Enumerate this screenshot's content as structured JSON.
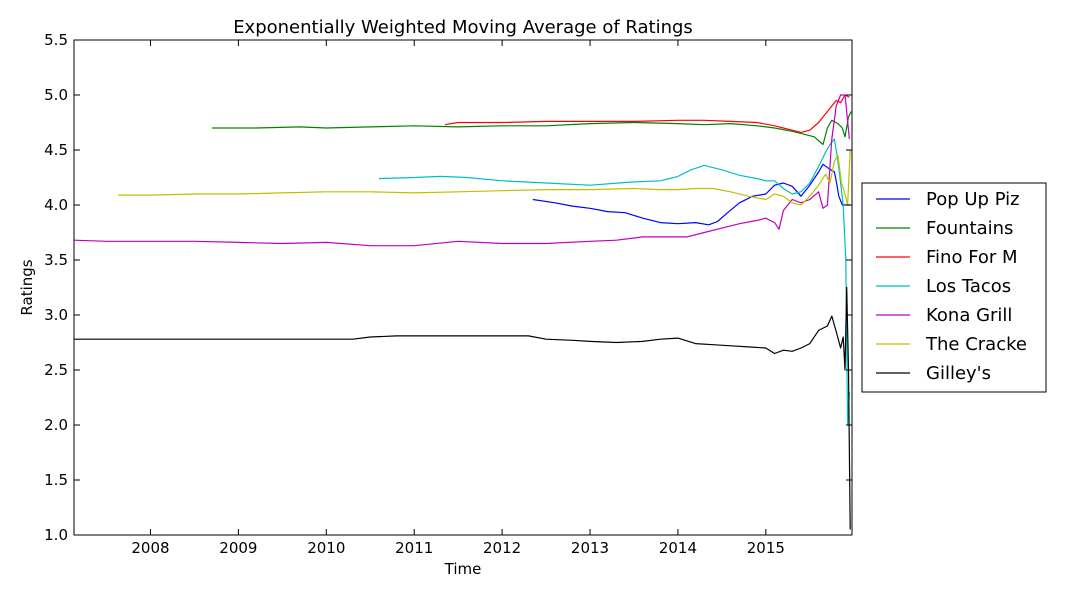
{
  "chart_data": {
    "type": "line",
    "title": "Exponentially Weighted Moving Average of Ratings",
    "xlabel": "Time",
    "ylabel": "Ratings",
    "xlim": [
      2007.13,
      2015.98
    ],
    "ylim": [
      1.0,
      5.5
    ],
    "xticks": [
      2008,
      2009,
      2010,
      2011,
      2012,
      2013,
      2014,
      2015
    ],
    "xtick_labels": [
      "2008",
      "2009",
      "2010",
      "2011",
      "2012",
      "2013",
      "2014",
      "2015"
    ],
    "yticks": [
      1.0,
      1.5,
      2.0,
      2.5,
      3.0,
      3.5,
      4.0,
      4.5,
      5.0,
      5.5
    ],
    "ytick_labels": [
      "1.0",
      "1.5",
      "2.0",
      "2.5",
      "3.0",
      "3.5",
      "4.0",
      "4.5",
      "5.0",
      "5.5"
    ],
    "grid": false,
    "legend_position": "outside-right",
    "series": [
      {
        "name": "Pop Up Piz",
        "color": "#0000ff",
        "points": [
          [
            2012.35,
            4.05
          ],
          [
            2012.6,
            4.02
          ],
          [
            2012.8,
            3.99
          ],
          [
            2013.0,
            3.97
          ],
          [
            2013.2,
            3.94
          ],
          [
            2013.4,
            3.93
          ],
          [
            2013.6,
            3.88
          ],
          [
            2013.8,
            3.84
          ],
          [
            2014.0,
            3.83
          ],
          [
            2014.2,
            3.84
          ],
          [
            2014.35,
            3.82
          ],
          [
            2014.45,
            3.85
          ],
          [
            2014.55,
            3.92
          ],
          [
            2014.7,
            4.02
          ],
          [
            2014.85,
            4.08
          ],
          [
            2015.0,
            4.1
          ],
          [
            2015.1,
            4.18
          ],
          [
            2015.2,
            4.2
          ],
          [
            2015.3,
            4.17
          ],
          [
            2015.4,
            4.08
          ],
          [
            2015.5,
            4.18
          ],
          [
            2015.6,
            4.3
          ],
          [
            2015.65,
            4.37
          ],
          [
            2015.72,
            4.33
          ],
          [
            2015.78,
            4.3
          ],
          [
            2015.8,
            4.22
          ],
          [
            2015.83,
            4.08
          ],
          [
            2015.87,
            4.0
          ],
          [
            2015.91,
            4.0
          ],
          [
            2015.96,
            4.0
          ]
        ]
      },
      {
        "name": "Fountains",
        "color": "#008000",
        "points": [
          [
            2008.7,
            4.7
          ],
          [
            2009.2,
            4.7
          ],
          [
            2009.7,
            4.71
          ],
          [
            2010.0,
            4.7
          ],
          [
            2010.5,
            4.71
          ],
          [
            2011.0,
            4.72
          ],
          [
            2011.5,
            4.71
          ],
          [
            2012.0,
            4.72
          ],
          [
            2012.5,
            4.72
          ],
          [
            2013.0,
            4.74
          ],
          [
            2013.5,
            4.75
          ],
          [
            2014.0,
            4.74
          ],
          [
            2014.3,
            4.73
          ],
          [
            2014.6,
            4.74
          ],
          [
            2014.9,
            4.72
          ],
          [
            2015.1,
            4.7
          ],
          [
            2015.3,
            4.67
          ],
          [
            2015.45,
            4.64
          ],
          [
            2015.55,
            4.62
          ],
          [
            2015.65,
            4.55
          ],
          [
            2015.7,
            4.7
          ],
          [
            2015.75,
            4.77
          ],
          [
            2015.82,
            4.74
          ],
          [
            2015.87,
            4.7
          ],
          [
            2015.9,
            4.62
          ],
          [
            2015.94,
            4.8
          ],
          [
            2015.97,
            4.85
          ]
        ]
      },
      {
        "name": "Fino For M",
        "color": "#ff0000",
        "points": [
          [
            2011.35,
            4.73
          ],
          [
            2011.5,
            4.75
          ],
          [
            2012.0,
            4.75
          ],
          [
            2012.5,
            4.76
          ],
          [
            2013.0,
            4.76
          ],
          [
            2013.5,
            4.76
          ],
          [
            2014.0,
            4.77
          ],
          [
            2014.3,
            4.77
          ],
          [
            2014.6,
            4.76
          ],
          [
            2014.9,
            4.75
          ],
          [
            2015.1,
            4.72
          ],
          [
            2015.3,
            4.68
          ],
          [
            2015.4,
            4.66
          ],
          [
            2015.5,
            4.68
          ],
          [
            2015.6,
            4.75
          ],
          [
            2015.65,
            4.8
          ],
          [
            2015.7,
            4.85
          ],
          [
            2015.75,
            4.9
          ],
          [
            2015.8,
            4.95
          ],
          [
            2015.85,
            4.93
          ],
          [
            2015.9,
            5.0
          ],
          [
            2015.95,
            4.98
          ]
        ]
      },
      {
        "name": "Los Tacos",
        "color": "#00bfbf",
        "points": [
          [
            2010.6,
            4.24
          ],
          [
            2011.0,
            4.25
          ],
          [
            2011.3,
            4.26
          ],
          [
            2011.6,
            4.25
          ],
          [
            2012.0,
            4.22
          ],
          [
            2012.5,
            4.2
          ],
          [
            2013.0,
            4.18
          ],
          [
            2013.5,
            4.21
          ],
          [
            2013.8,
            4.22
          ],
          [
            2014.0,
            4.26
          ],
          [
            2014.15,
            4.32
          ],
          [
            2014.3,
            4.36
          ],
          [
            2014.5,
            4.32
          ],
          [
            2014.7,
            4.27
          ],
          [
            2014.9,
            4.24
          ],
          [
            2015.0,
            4.22
          ],
          [
            2015.1,
            4.22
          ],
          [
            2015.2,
            4.15
          ],
          [
            2015.3,
            4.1
          ],
          [
            2015.4,
            4.12
          ],
          [
            2015.5,
            4.2
          ],
          [
            2015.6,
            4.35
          ],
          [
            2015.68,
            4.48
          ],
          [
            2015.73,
            4.55
          ],
          [
            2015.78,
            4.6
          ],
          [
            2015.82,
            4.4
          ],
          [
            2015.85,
            4.2
          ],
          [
            2015.88,
            4.0
          ],
          [
            2015.91,
            3.5
          ],
          [
            2015.93,
            2.0
          ],
          [
            2015.95,
            2.3
          ]
        ]
      },
      {
        "name": "Kona Grill",
        "color": "#bf00bf",
        "points": [
          [
            2007.13,
            3.68
          ],
          [
            2007.5,
            3.67
          ],
          [
            2008.0,
            3.67
          ],
          [
            2008.5,
            3.67
          ],
          [
            2009.0,
            3.66
          ],
          [
            2009.5,
            3.65
          ],
          [
            2010.0,
            3.66
          ],
          [
            2010.5,
            3.63
          ],
          [
            2011.0,
            3.63
          ],
          [
            2011.5,
            3.67
          ],
          [
            2012.0,
            3.65
          ],
          [
            2012.5,
            3.65
          ],
          [
            2013.0,
            3.67
          ],
          [
            2013.3,
            3.68
          ],
          [
            2013.6,
            3.71
          ],
          [
            2013.9,
            3.71
          ],
          [
            2014.1,
            3.71
          ],
          [
            2014.3,
            3.75
          ],
          [
            2014.5,
            3.79
          ],
          [
            2014.7,
            3.83
          ],
          [
            2014.9,
            3.86
          ],
          [
            2015.0,
            3.88
          ],
          [
            2015.1,
            3.84
          ],
          [
            2015.15,
            3.78
          ],
          [
            2015.2,
            3.95
          ],
          [
            2015.3,
            4.05
          ],
          [
            2015.4,
            4.02
          ],
          [
            2015.5,
            4.05
          ],
          [
            2015.6,
            4.12
          ],
          [
            2015.65,
            3.97
          ],
          [
            2015.7,
            4.0
          ],
          [
            2015.75,
            4.6
          ],
          [
            2015.8,
            4.9
          ],
          [
            2015.85,
            5.0
          ],
          [
            2015.9,
            5.0
          ],
          [
            2015.95,
            4.6
          ]
        ]
      },
      {
        "name": "The Cracke",
        "color": "#bfbf00",
        "points": [
          [
            2007.63,
            4.09
          ],
          [
            2008.0,
            4.09
          ],
          [
            2008.5,
            4.1
          ],
          [
            2009.0,
            4.1
          ],
          [
            2009.5,
            4.11
          ],
          [
            2010.0,
            4.12
          ],
          [
            2010.5,
            4.12
          ],
          [
            2011.0,
            4.11
          ],
          [
            2011.5,
            4.12
          ],
          [
            2012.0,
            4.13
          ],
          [
            2012.5,
            4.14
          ],
          [
            2013.0,
            4.14
          ],
          [
            2013.5,
            4.15
          ],
          [
            2013.8,
            4.14
          ],
          [
            2014.0,
            4.14
          ],
          [
            2014.2,
            4.15
          ],
          [
            2014.4,
            4.15
          ],
          [
            2014.6,
            4.12
          ],
          [
            2014.8,
            4.08
          ],
          [
            2015.0,
            4.05
          ],
          [
            2015.1,
            4.1
          ],
          [
            2015.2,
            4.08
          ],
          [
            2015.3,
            4.02
          ],
          [
            2015.4,
            4.0
          ],
          [
            2015.5,
            4.08
          ],
          [
            2015.6,
            4.18
          ],
          [
            2015.68,
            4.28
          ],
          [
            2015.73,
            4.2
          ],
          [
            2015.78,
            4.4
          ],
          [
            2015.82,
            4.45
          ],
          [
            2015.86,
            4.2
          ],
          [
            2015.9,
            4.1
          ],
          [
            2015.93,
            4.0
          ],
          [
            2015.96,
            4.5
          ]
        ]
      },
      {
        "name": "Gilley's",
        "color": "#000000",
        "points": [
          [
            2007.13,
            2.78
          ],
          [
            2008.0,
            2.78
          ],
          [
            2009.0,
            2.78
          ],
          [
            2010.0,
            2.78
          ],
          [
            2010.3,
            2.78
          ],
          [
            2010.5,
            2.8
          ],
          [
            2010.8,
            2.81
          ],
          [
            2011.0,
            2.81
          ],
          [
            2011.5,
            2.81
          ],
          [
            2012.0,
            2.81
          ],
          [
            2012.3,
            2.81
          ],
          [
            2012.5,
            2.78
          ],
          [
            2012.8,
            2.77
          ],
          [
            2013.0,
            2.76
          ],
          [
            2013.3,
            2.75
          ],
          [
            2013.6,
            2.76
          ],
          [
            2013.8,
            2.78
          ],
          [
            2014.0,
            2.79
          ],
          [
            2014.2,
            2.74
          ],
          [
            2014.4,
            2.73
          ],
          [
            2014.6,
            2.72
          ],
          [
            2014.8,
            2.71
          ],
          [
            2015.0,
            2.7
          ],
          [
            2015.1,
            2.65
          ],
          [
            2015.2,
            2.68
          ],
          [
            2015.3,
            2.67
          ],
          [
            2015.4,
            2.7
          ],
          [
            2015.5,
            2.74
          ],
          [
            2015.6,
            2.86
          ],
          [
            2015.7,
            2.9
          ],
          [
            2015.75,
            2.99
          ],
          [
            2015.8,
            2.85
          ],
          [
            2015.85,
            2.7
          ],
          [
            2015.88,
            2.8
          ],
          [
            2015.9,
            2.5
          ],
          [
            2015.92,
            3.25
          ],
          [
            2015.94,
            2.5
          ],
          [
            2015.96,
            1.05
          ]
        ]
      }
    ]
  }
}
